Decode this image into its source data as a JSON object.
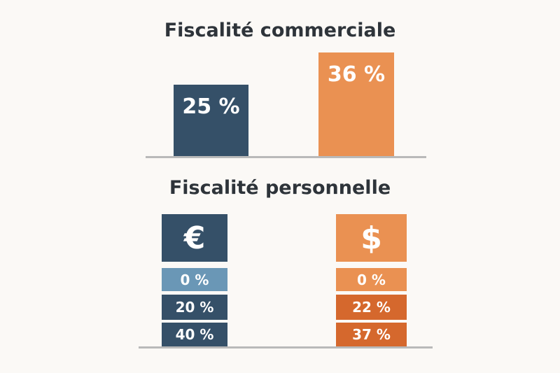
{
  "chart_data": [
    {
      "type": "bar",
      "title": "Fiscalité commerciale",
      "categories": [
        "",
        ""
      ],
      "values": [
        25,
        36
      ],
      "data_labels": [
        "25 %",
        "36 %"
      ],
      "colors": [
        "#355068",
        "#ea9152"
      ],
      "ylim": [
        0,
        40
      ],
      "grid": false
    },
    {
      "type": "table",
      "title": "Fiscalité personnelle",
      "columns": [
        {
          "symbol": "€",
          "symbol_color": "#355068",
          "rates": [
            "0 %",
            "20 %",
            "40 %"
          ],
          "rate_colors": [
            "#6a97b6",
            "#355068",
            "#355068"
          ]
        },
        {
          "symbol": "$",
          "symbol_color": "#ea9152",
          "rates": [
            "0 %",
            "22 %",
            "37 %"
          ],
          "rate_colors": [
            "#ea9152",
            "#d5682d",
            "#d5682d"
          ]
        }
      ]
    }
  ]
}
